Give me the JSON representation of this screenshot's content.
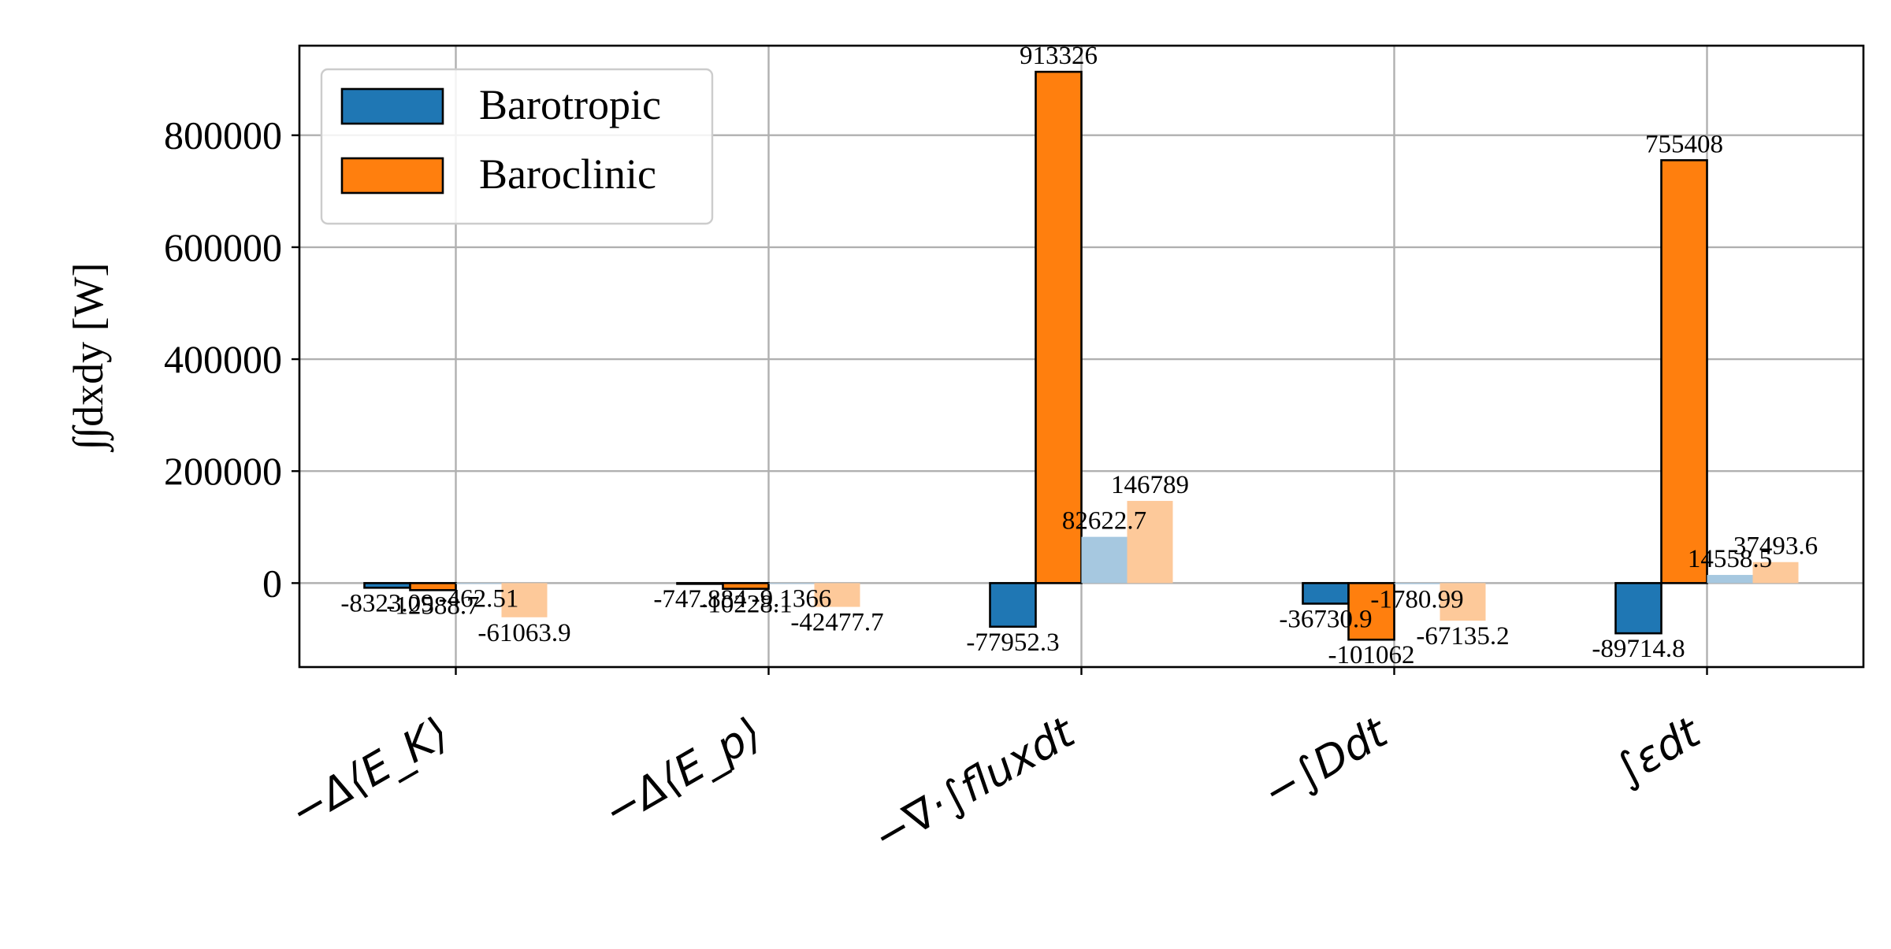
{
  "chart_data": {
    "type": "bar",
    "ylabel": "∫∫dxdy [W]",
    "ylim": [
      -150000,
      960000
    ],
    "yticks": [
      0,
      200000,
      400000,
      600000,
      800000
    ],
    "grid": true,
    "legend_position": "upper-left",
    "categories": [
      "−Δ⟨E_K⟩",
      "−Δ⟨E_p⟩",
      "−∇·∫fluxdt",
      "−∫Ddt",
      "∫εdt"
    ],
    "series": [
      {
        "name": "Barotropic",
        "color": "#1f77b4",
        "edge": true,
        "in_legend": true,
        "labels": [
          "-8323.09",
          "-747.884",
          "-77952.3",
          "-36730.9",
          "-89714.8"
        ],
        "values": [
          -8323.09,
          -747.884,
          -77952.3,
          -36730.9,
          -89714.8
        ]
      },
      {
        "name": "Baroclinic",
        "color": "#ff7f0e",
        "edge": true,
        "in_legend": true,
        "labels": [
          "-12588.7",
          "-10228.1",
          "913326",
          "-101062",
          "755408"
        ],
        "values": [
          -12588.7,
          -10228.1,
          913326,
          -101062,
          755408
        ]
      },
      {
        "name": "",
        "color": "#a6c8e0",
        "edge": false,
        "in_legend": false,
        "labels": [
          "-462.51",
          "-9.1366",
          "82622.7",
          "-1780.99",
          "14558.5"
        ],
        "values": [
          -462.51,
          -9.1366,
          82622.7,
          -1780.99,
          14558.5
        ]
      },
      {
        "name": "",
        "color": "#fdc99a",
        "edge": false,
        "in_legend": false,
        "labels": [
          "-61063.9",
          "-42477.7",
          "146789",
          "-67135.2",
          "37493.6"
        ],
        "values": [
          -61063.9,
          -42477.7,
          146789,
          -67135.2,
          37493.6
        ]
      }
    ]
  }
}
